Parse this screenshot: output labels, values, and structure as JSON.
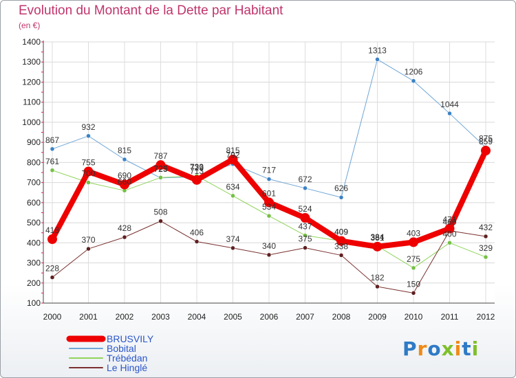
{
  "title": "Evolution du Montant de la Dette par Habitant",
  "subtitle": "(en €)",
  "logo": {
    "text": "Proxiti",
    "letters": [
      "P",
      "r",
      "o",
      "x",
      "i",
      "t",
      "i"
    ],
    "colors": [
      "#2e7ac6",
      "#f08a16",
      "#2e7ac6",
      "#7fbf2b",
      "#f08a16",
      "#2e7ac6",
      "#7fbf2b"
    ]
  },
  "chart_data": {
    "type": "line",
    "categories": [
      "2000",
      "2001",
      "2002",
      "2003",
      "2004",
      "2005",
      "2006",
      "2007",
      "2008",
      "2009",
      "2010",
      "2011",
      "2012"
    ],
    "ylim": [
      100,
      1400
    ],
    "yticks": [
      100,
      200,
      300,
      400,
      500,
      600,
      700,
      800,
      900,
      1000,
      1100,
      1200,
      1300,
      1400
    ],
    "grid": true,
    "legend_position": "bottom-left",
    "series": [
      {
        "name": "BRUSVILY",
        "color": "#ee0000",
        "marker": "#ee0000",
        "width": 8,
        "values": [
          418,
          755,
          690,
          787,
          713,
          815,
          601,
          524,
          409,
          381,
          403,
          471,
          859
        ]
      },
      {
        "name": "Bobital",
        "color": "#6fa6d8",
        "marker": "#3b82c4",
        "width": 1,
        "values": [
          867,
          932,
          815,
          723,
          729,
          792,
          717,
          672,
          626,
          1313,
          1206,
          1044,
          875
        ]
      },
      {
        "name": "Trébédan",
        "color": "#8fd45a",
        "marker": "#74c043",
        "width": 1,
        "values": [
          761,
          700,
          660,
          725,
          733,
          634,
          534,
          437,
          409,
          384,
          275,
          400,
          329
        ]
      },
      {
        "name": "Le Hinglé",
        "color": "#7a2f2f",
        "marker": "#5e2020",
        "width": 1,
        "values": [
          228,
          370,
          428,
          508,
          406,
          374,
          340,
          375,
          338,
          182,
          150,
          460,
          432
        ]
      }
    ]
  }
}
